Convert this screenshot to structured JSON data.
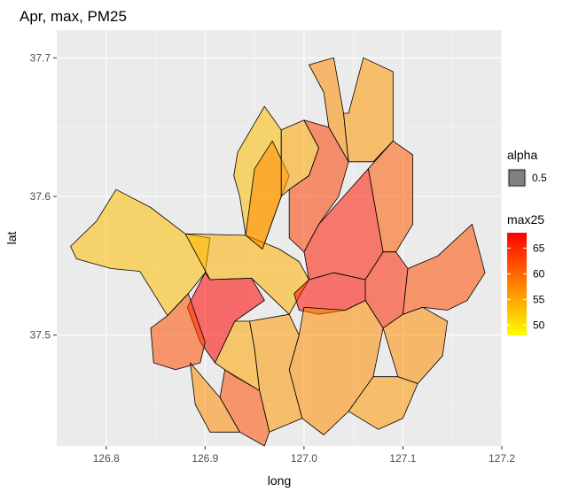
{
  "chart_data": {
    "type": "choropleth-map",
    "title": "Apr, max, PM25",
    "xlabel": "long",
    "ylabel": "lat",
    "xlim": [
      126.75,
      127.2
    ],
    "ylim": [
      37.42,
      37.72
    ],
    "x_ticks": [
      "126.8",
      "126.9",
      "127.0",
      "127.1",
      "127.2"
    ],
    "y_ticks": [
      "37.5",
      "37.6",
      "37.7"
    ],
    "x_tick_values": [
      126.8,
      126.9,
      127.0,
      127.1,
      127.2
    ],
    "y_tick_values": [
      37.5,
      37.6,
      37.7
    ],
    "grid": true,
    "legend": {
      "position": "right",
      "alpha_title": "alpha",
      "alpha_value": "0.5",
      "fill_title": "max25",
      "fill_breaks": [
        "65",
        "60",
        "55",
        "50"
      ],
      "fill_break_values": [
        65,
        60,
        55,
        50
      ],
      "fill_range": [
        48,
        68
      ],
      "low_color": "#ffff00",
      "high_color": "#ff0000"
    },
    "regions": [
      {
        "value": 53,
        "poly": [
          [
            126.933,
            37.632
          ],
          [
            126.96,
            37.665
          ],
          [
            126.977,
            37.648
          ],
          [
            126.977,
            37.6
          ],
          [
            126.958,
            37.562
          ],
          [
            126.941,
            37.572
          ],
          [
            126.935,
            37.6
          ],
          [
            126.929,
            37.615
          ]
        ]
      },
      {
        "value": 53,
        "poly": [
          [
            126.764,
            37.564
          ],
          [
            126.79,
            37.582
          ],
          [
            126.81,
            37.605
          ],
          [
            126.845,
            37.592
          ],
          [
            126.88,
            37.573
          ],
          [
            126.905,
            37.57
          ],
          [
            126.9,
            37.545
          ],
          [
            126.883,
            37.53
          ],
          [
            126.862,
            37.514
          ],
          [
            126.834,
            37.546
          ],
          [
            126.805,
            37.548
          ],
          [
            126.77,
            37.555
          ]
        ]
      },
      {
        "value": 54,
        "poly": [
          [
            126.88,
            37.573
          ],
          [
            126.941,
            37.572
          ],
          [
            126.975,
            37.562
          ],
          [
            126.995,
            37.553
          ],
          [
            127.005,
            37.54
          ],
          [
            126.985,
            37.515
          ],
          [
            126.947,
            37.541
          ],
          [
            126.905,
            37.54
          ]
        ]
      },
      {
        "value": 57,
        "poly": [
          [
            126.941,
            37.572
          ],
          [
            126.958,
            37.562
          ],
          [
            126.977,
            37.6
          ],
          [
            126.985,
            37.615
          ],
          [
            126.968,
            37.64
          ],
          [
            126.95,
            37.62
          ]
        ]
      },
      {
        "value": 55,
        "poly": [
          [
            126.977,
            37.648
          ],
          [
            127.0,
            37.655
          ],
          [
            127.015,
            37.635
          ],
          [
            127.005,
            37.615
          ],
          [
            126.985,
            37.605
          ],
          [
            126.977,
            37.6
          ]
        ]
      },
      {
        "value": 63,
        "poly": [
          [
            127.0,
            37.655
          ],
          [
            127.025,
            37.65
          ],
          [
            127.045,
            37.625
          ],
          [
            127.035,
            37.6
          ],
          [
            127.015,
            37.58
          ],
          [
            127.0,
            37.56
          ],
          [
            126.985,
            37.57
          ],
          [
            126.985,
            37.605
          ],
          [
            127.005,
            37.615
          ],
          [
            127.015,
            37.635
          ]
        ]
      },
      {
        "value": 57,
        "poly": [
          [
            127.005,
            37.695
          ],
          [
            127.03,
            37.7
          ],
          [
            127.04,
            37.66
          ],
          [
            127.045,
            37.625
          ],
          [
            127.025,
            37.65
          ],
          [
            127.02,
            37.675
          ]
        ]
      },
      {
        "value": 56,
        "poly": [
          [
            127.045,
            37.66
          ],
          [
            127.06,
            37.7
          ],
          [
            127.09,
            37.69
          ],
          [
            127.09,
            37.64
          ],
          [
            127.07,
            37.625
          ],
          [
            127.045,
            37.625
          ],
          [
            127.04,
            37.66
          ]
        ]
      },
      {
        "value": 66,
        "poly": [
          [
            127.015,
            37.58
          ],
          [
            127.04,
            37.6
          ],
          [
            127.065,
            37.62
          ],
          [
            127.08,
            37.56
          ],
          [
            127.062,
            37.54
          ],
          [
            127.03,
            37.545
          ],
          [
            127.005,
            37.54
          ],
          [
            127.0,
            37.56
          ]
        ]
      },
      {
        "value": 61,
        "poly": [
          [
            127.065,
            37.62
          ],
          [
            127.09,
            37.64
          ],
          [
            127.11,
            37.63
          ],
          [
            127.11,
            37.58
          ],
          [
            127.093,
            37.56
          ],
          [
            127.08,
            37.56
          ]
        ]
      },
      {
        "value": 65,
        "poly": [
          [
            127.08,
            37.56
          ],
          [
            127.093,
            37.56
          ],
          [
            127.105,
            37.548
          ],
          [
            127.1,
            37.515
          ],
          [
            127.08,
            37.505
          ],
          [
            127.062,
            37.525
          ],
          [
            127.062,
            37.54
          ]
        ]
      },
      {
        "value": 67,
        "poly": [
          [
            126.99,
            37.53
          ],
          [
            127.005,
            37.54
          ],
          [
            127.03,
            37.545
          ],
          [
            127.062,
            37.54
          ],
          [
            127.062,
            37.525
          ],
          [
            127.042,
            37.518
          ],
          [
            127.015,
            37.515
          ],
          [
            126.995,
            37.518
          ]
        ]
      },
      {
        "value": 62,
        "poly": [
          [
            127.105,
            37.548
          ],
          [
            127.135,
            37.557
          ],
          [
            127.17,
            37.58
          ],
          [
            127.183,
            37.545
          ],
          [
            127.165,
            37.525
          ],
          [
            127.145,
            37.518
          ],
          [
            127.12,
            37.52
          ],
          [
            127.1,
            37.515
          ]
        ]
      },
      {
        "value": 57,
        "poly": [
          [
            127.08,
            37.505
          ],
          [
            127.1,
            37.515
          ],
          [
            127.12,
            37.52
          ],
          [
            127.145,
            37.51
          ],
          [
            127.14,
            37.485
          ],
          [
            127.115,
            37.465
          ],
          [
            127.095,
            37.47
          ]
        ]
      },
      {
        "value": 57,
        "poly": [
          [
            127.0,
            37.52
          ],
          [
            127.042,
            37.518
          ],
          [
            127.062,
            37.525
          ],
          [
            127.08,
            37.505
          ],
          [
            127.07,
            37.47
          ],
          [
            127.045,
            37.445
          ],
          [
            127.02,
            37.428
          ],
          [
            126.998,
            37.44
          ],
          [
            126.985,
            37.475
          ],
          [
            126.995,
            37.5
          ]
        ]
      },
      {
        "value": 56,
        "poly": [
          [
            127.045,
            37.445
          ],
          [
            127.07,
            37.47
          ],
          [
            127.095,
            37.47
          ],
          [
            127.115,
            37.465
          ],
          [
            127.1,
            37.44
          ],
          [
            127.075,
            37.432
          ]
        ]
      },
      {
        "value": 56,
        "poly": [
          [
            126.945,
            37.51
          ],
          [
            126.985,
            37.515
          ],
          [
            126.995,
            37.5
          ],
          [
            126.985,
            37.475
          ],
          [
            126.998,
            37.44
          ],
          [
            126.965,
            37.43
          ],
          [
            126.955,
            37.46
          ],
          [
            126.95,
            37.49
          ]
        ]
      },
      {
        "value": 68,
        "poly": [
          [
            126.9,
            37.545
          ],
          [
            126.905,
            37.54
          ],
          [
            126.947,
            37.541
          ],
          [
            126.96,
            37.525
          ],
          [
            126.93,
            37.51
          ],
          [
            126.91,
            37.48
          ],
          [
            126.895,
            37.495
          ],
          [
            126.882,
            37.52
          ]
        ]
      },
      {
        "value": 62,
        "poly": [
          [
            126.862,
            37.514
          ],
          [
            126.883,
            37.53
          ],
          [
            126.9,
            37.495
          ],
          [
            126.895,
            37.48
          ],
          [
            126.87,
            37.475
          ],
          [
            126.848,
            37.48
          ],
          [
            126.845,
            37.505
          ]
        ]
      },
      {
        "value": 55,
        "poly": [
          [
            126.91,
            37.48
          ],
          [
            126.93,
            37.51
          ],
          [
            126.945,
            37.51
          ],
          [
            126.95,
            37.49
          ],
          [
            126.955,
            37.46
          ],
          [
            126.93,
            37.47
          ]
        ]
      },
      {
        "value": 62,
        "poly": [
          [
            126.92,
            37.475
          ],
          [
            126.955,
            37.46
          ],
          [
            126.965,
            37.43
          ],
          [
            126.96,
            37.42
          ],
          [
            126.935,
            37.43
          ],
          [
            126.915,
            37.455
          ]
        ]
      },
      {
        "value": 57,
        "poly": [
          [
            126.885,
            37.48
          ],
          [
            126.915,
            37.455
          ],
          [
            126.935,
            37.43
          ],
          [
            126.905,
            37.43
          ],
          [
            126.89,
            37.45
          ]
        ]
      }
    ]
  }
}
